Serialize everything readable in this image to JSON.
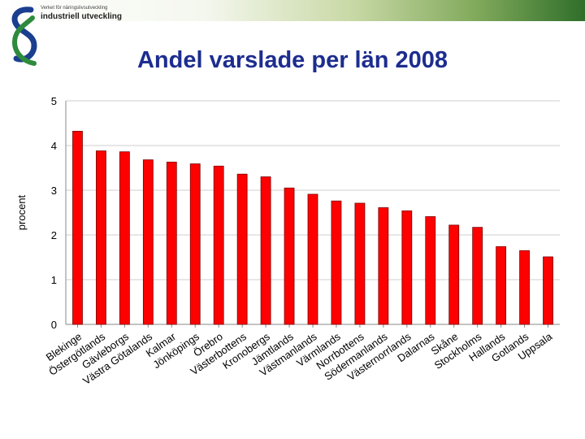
{
  "header": {
    "org_small": "Verket för näringslivsutveckling",
    "org_name": "industriell utveckling"
  },
  "colors": {
    "bar": "#ff0000",
    "bar_edge": "#7a0000",
    "title": "#1d2d8f",
    "grid": "#cfcfcf",
    "logo_blue": "#1b3f8f",
    "logo_green": "#2e8b3d"
  },
  "chart_data": {
    "type": "bar",
    "title": "Andel varslade per län 2008",
    "xlabel": "",
    "ylabel": "procent",
    "ylim": [
      0,
      5
    ],
    "yticks": [
      "0",
      "1",
      "2",
      "3",
      "4",
      "5"
    ],
    "grid": true,
    "legend": "none",
    "categories": [
      "Blekinge",
      "Östergötlands",
      "Gävleborgs",
      "Västra Götalands",
      "Kalmar",
      "Jönköpings",
      "Örebro",
      "Västerbottens",
      "Kronobergs",
      "Jämtlands",
      "Västmanlands",
      "Värmlands",
      "Norrbottens",
      "Södermanlands",
      "Västernorrlands",
      "Dalarnas",
      "Skåne",
      "Stockholms",
      "Hallands",
      "Gotlands",
      "Uppsala"
    ],
    "values": [
      4.32,
      3.88,
      3.86,
      3.68,
      3.63,
      3.59,
      3.54,
      3.36,
      3.3,
      3.05,
      2.91,
      2.76,
      2.71,
      2.61,
      2.54,
      2.41,
      2.22,
      2.17,
      1.74,
      1.65,
      1.51
    ]
  }
}
